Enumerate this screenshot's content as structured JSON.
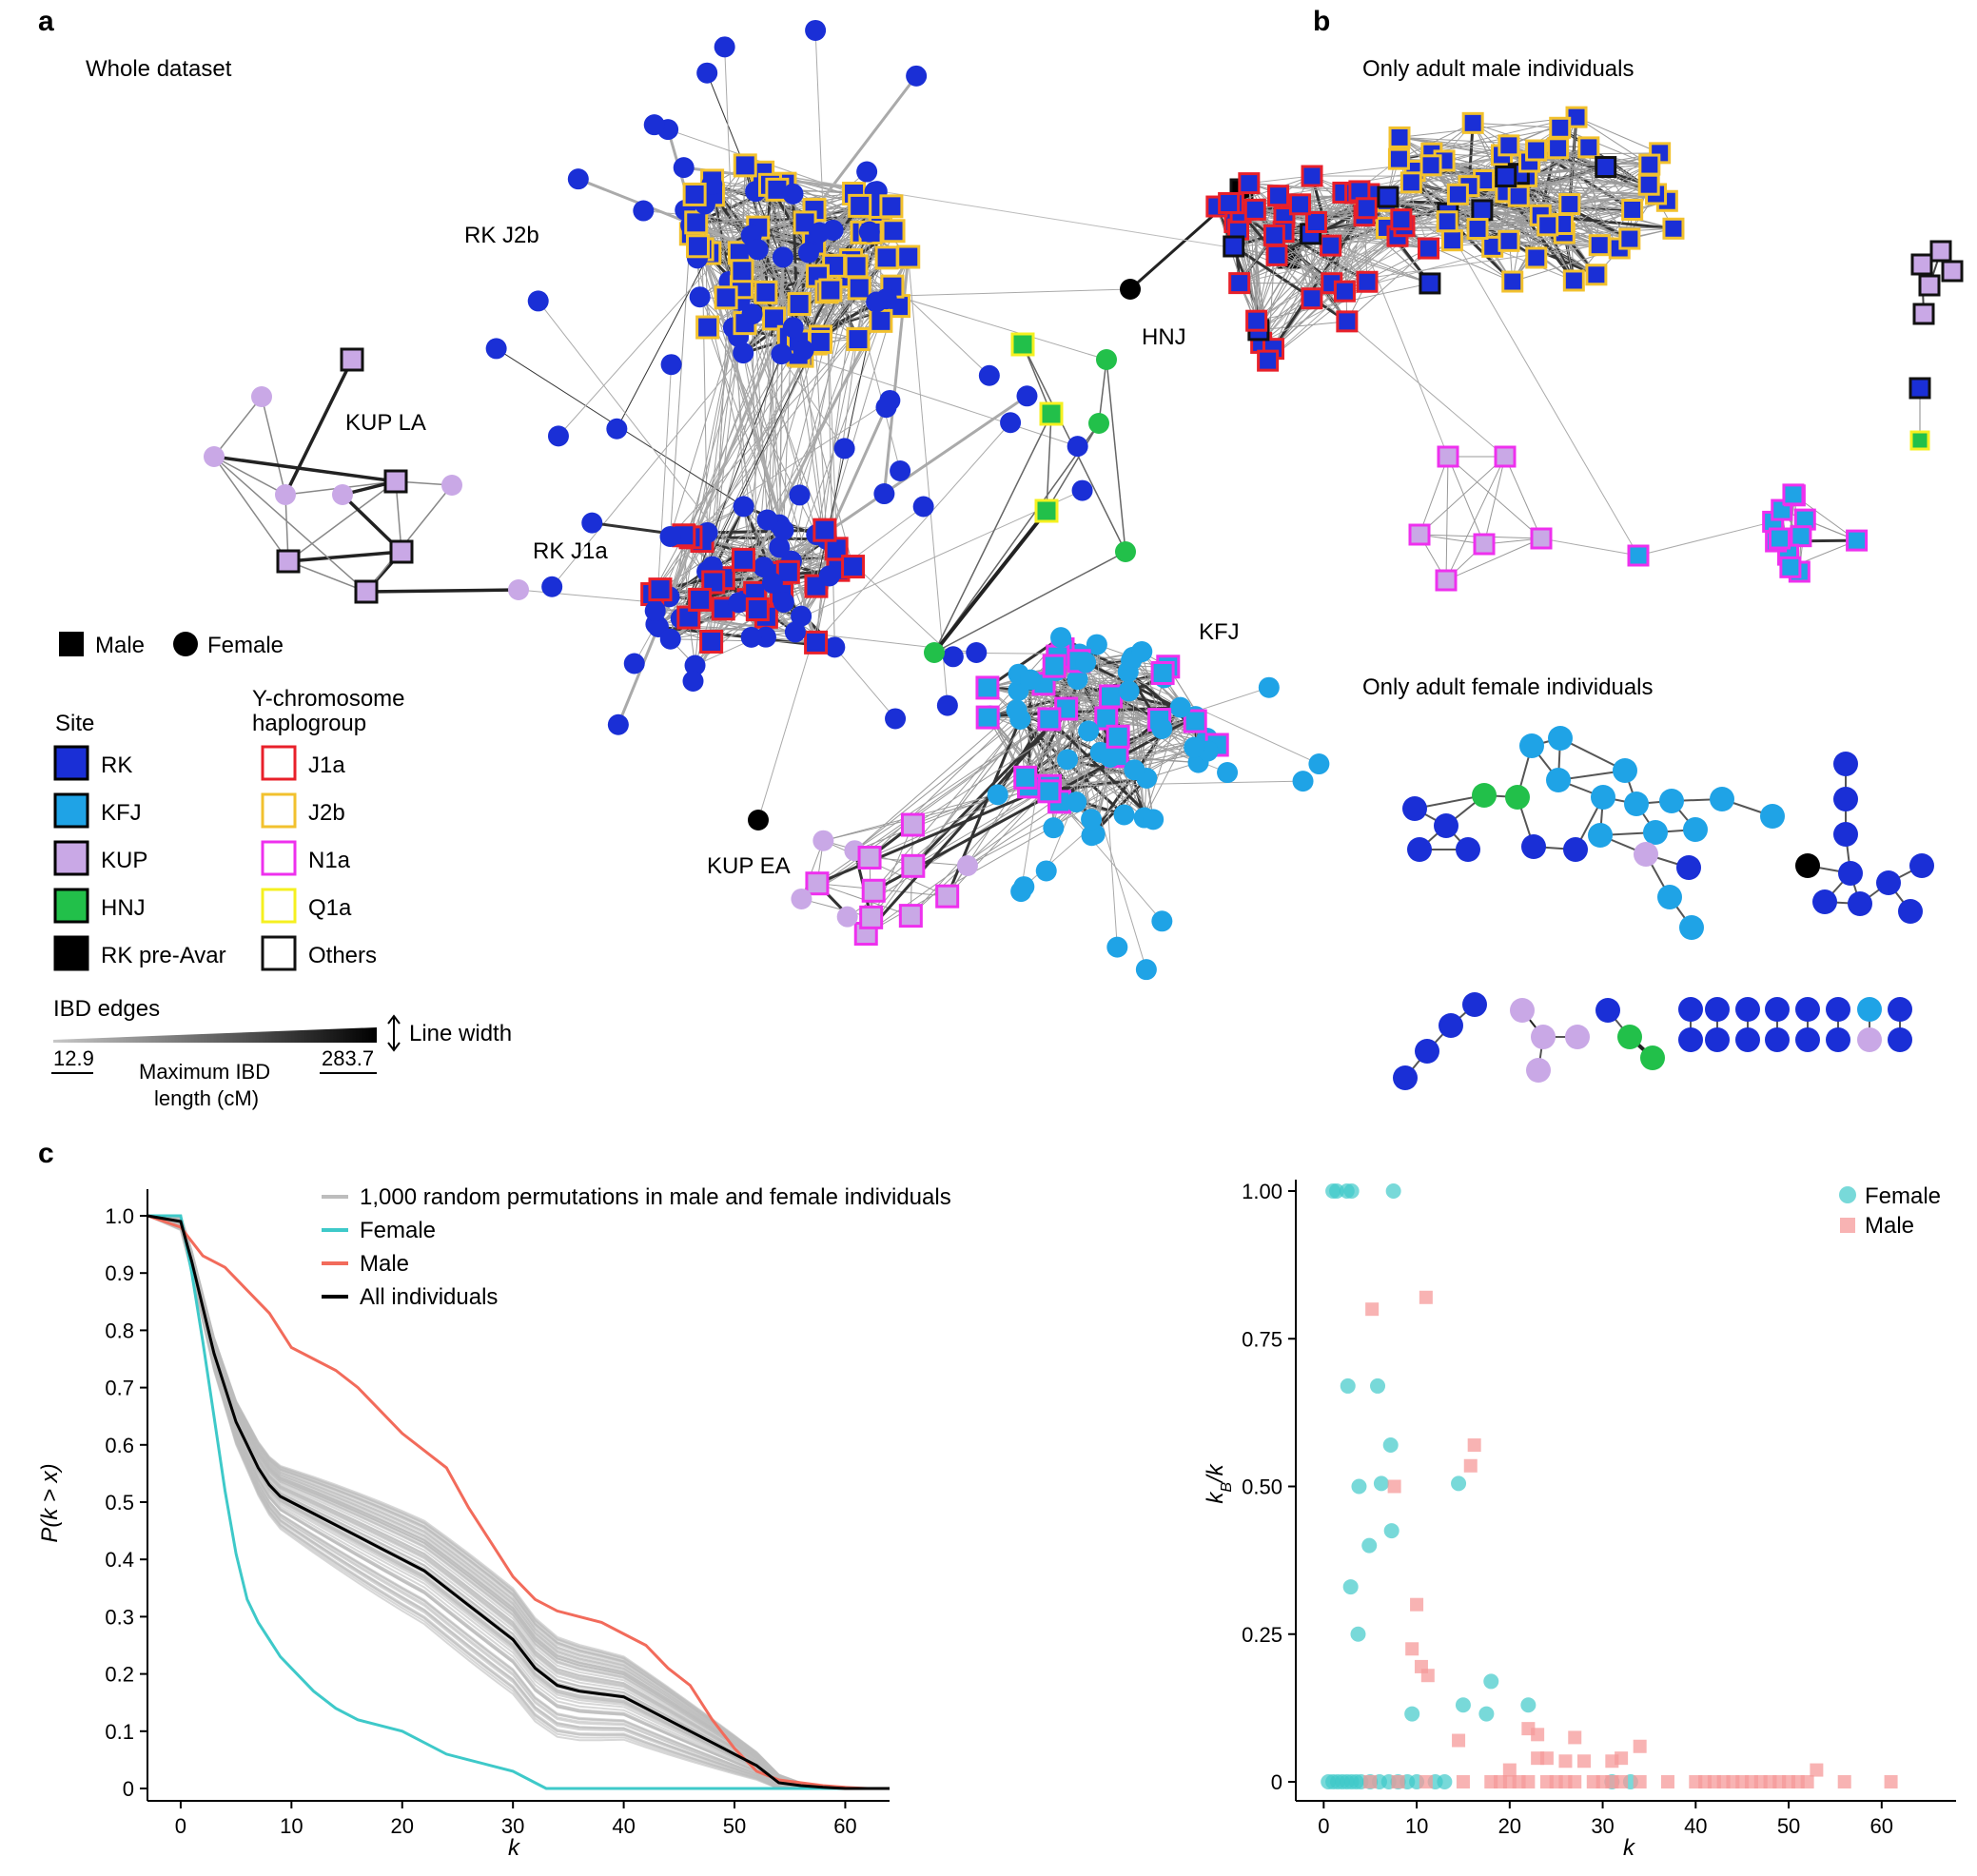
{
  "panels": {
    "a": {
      "letter": "a",
      "title": "Whole dataset",
      "cluster_labels": [
        "RK J2b",
        "KUP LA",
        "RK J1a",
        "HNJ",
        "KFJ",
        "KUP EA"
      ]
    },
    "b": {
      "letter": "b",
      "title_male": "Only adult male individuals",
      "title_female": "Only adult female individuals"
    },
    "c": {
      "letter": "c"
    }
  },
  "legend": {
    "sex": {
      "male": "Male",
      "female": "Female"
    },
    "site_title": "Site",
    "sites": [
      {
        "label": "RK",
        "color": "#1a2fd6"
      },
      {
        "label": "KFJ",
        "color": "#1fa3e6"
      },
      {
        "label": "KUP",
        "color": "#c9a8e6"
      },
      {
        "label": "HNJ",
        "color": "#22c04a"
      },
      {
        "label": "RK pre-Avar",
        "color": "#000000"
      }
    ],
    "hap_title_line1": "Y-chromosome",
    "hap_title_line2": "haplogroup",
    "haplogroups": [
      {
        "label": "J1a",
        "color": "#e8202a"
      },
      {
        "label": "J2b",
        "color": "#f2c12e"
      },
      {
        "label": "N1a",
        "color": "#ee30ee"
      },
      {
        "label": "Q1a",
        "color": "#f5f020"
      },
      {
        "label": "Others",
        "color": "#111111"
      }
    ],
    "ibd_title": "IBD edges",
    "ibd_min": "12.9",
    "ibd_max": "283.7",
    "ibd_axis_line1": "Maximum IBD",
    "ibd_axis_line2": "length (cM)",
    "line_width": "Line width"
  },
  "chart_data": [
    {
      "type": "line",
      "title": "",
      "xlabel": "k",
      "ylabel": "P(k > x)",
      "xlim": [
        -3,
        64
      ],
      "ylim": [
        0,
        1.0
      ],
      "x_ticks": [
        "0",
        "10",
        "20",
        "30",
        "40",
        "50",
        "60"
      ],
      "y_ticks": [
        "0",
        "0.1",
        "0.2",
        "0.3",
        "0.4",
        "0.5",
        "0.6",
        "0.7",
        "0.8",
        "0.9",
        "1.0"
      ],
      "legend": [
        "1,000 random permutations in male and female individuals",
        "Female",
        "Male",
        "All individuals"
      ],
      "series": [
        {
          "name": "Female",
          "color": "#3ec9c9",
          "x": [
            -3,
            0,
            1,
            2,
            3,
            4,
            5,
            6,
            7,
            8,
            9,
            10,
            12,
            14,
            16,
            18,
            20,
            22,
            24,
            26,
            28,
            30,
            32,
            33,
            40,
            50,
            64
          ],
          "y": [
            1.0,
            1.0,
            0.9,
            0.78,
            0.65,
            0.52,
            0.41,
            0.33,
            0.29,
            0.26,
            0.23,
            0.21,
            0.17,
            0.14,
            0.12,
            0.11,
            0.1,
            0.08,
            0.06,
            0.05,
            0.04,
            0.03,
            0.01,
            0.0,
            0.0,
            0.0,
            0.0
          ]
        },
        {
          "name": "Male",
          "color": "#f26b5b",
          "x": [
            -3,
            0,
            2,
            4,
            6,
            8,
            10,
            12,
            14,
            16,
            18,
            20,
            22,
            24,
            26,
            28,
            30,
            32,
            34,
            36,
            38,
            40,
            42,
            44,
            46,
            48,
            50,
            52,
            54,
            56,
            58,
            60,
            62,
            64
          ],
          "y": [
            1.0,
            0.98,
            0.93,
            0.91,
            0.87,
            0.83,
            0.77,
            0.75,
            0.73,
            0.7,
            0.66,
            0.62,
            0.59,
            0.56,
            0.49,
            0.43,
            0.37,
            0.33,
            0.31,
            0.3,
            0.29,
            0.27,
            0.25,
            0.21,
            0.18,
            0.12,
            0.07,
            0.03,
            0.015,
            0.01,
            0.005,
            0.002,
            0.0,
            0.0
          ]
        },
        {
          "name": "All individuals",
          "color": "#000000",
          "x": [
            -3,
            0,
            1,
            2,
            3,
            4,
            5,
            6,
            7,
            8,
            9,
            10,
            12,
            14,
            16,
            18,
            20,
            22,
            24,
            26,
            28,
            30,
            32,
            34,
            36,
            38,
            40,
            42,
            44,
            46,
            48,
            50,
            52,
            54,
            56,
            58,
            60,
            62,
            64
          ],
          "y": [
            1.0,
            0.99,
            0.92,
            0.84,
            0.76,
            0.7,
            0.64,
            0.6,
            0.56,
            0.53,
            0.51,
            0.5,
            0.48,
            0.46,
            0.44,
            0.42,
            0.4,
            0.38,
            0.35,
            0.32,
            0.29,
            0.26,
            0.21,
            0.18,
            0.17,
            0.165,
            0.16,
            0.14,
            0.12,
            0.1,
            0.08,
            0.06,
            0.04,
            0.01,
            0.005,
            0.002,
            0.0,
            0.0,
            0.0
          ]
        }
      ]
    },
    {
      "type": "scatter",
      "title": "",
      "xlabel": "k",
      "ylabel": "kB/k",
      "ylabel_main": "k",
      "ylabel_sub": "B",
      "ylabel_tail": "/k",
      "xlim": [
        -3,
        68
      ],
      "ylim": [
        -0.04,
        1.05
      ],
      "x_ticks": [
        "0",
        "10",
        "20",
        "30",
        "40",
        "50",
        "60"
      ],
      "y_ticks": [
        "0",
        "0.25",
        "0.50",
        "0.75",
        "1.00"
      ],
      "legend": [
        "Female",
        "Male"
      ],
      "series": [
        {
          "name": "Female",
          "color": "#3ec9c9",
          "points": [
            [
              1,
              1.0
            ],
            [
              1.4,
              1.0
            ],
            [
              2.5,
              1.0
            ],
            [
              3,
              1.0
            ],
            [
              7.5,
              1.0
            ],
            [
              2.6,
              0.67
            ],
            [
              5.8,
              0.67
            ],
            [
              7.2,
              0.57
            ],
            [
              3.8,
              0.5
            ],
            [
              6.2,
              0.505
            ],
            [
              14.5,
              0.505
            ],
            [
              4.9,
              0.4
            ],
            [
              7.3,
              0.425
            ],
            [
              2.9,
              0.33
            ],
            [
              3.7,
              0.25
            ],
            [
              18,
              0.17
            ],
            [
              22,
              0.13
            ],
            [
              15,
              0.13
            ],
            [
              17.5,
              0.115
            ],
            [
              9.5,
              0.115
            ],
            [
              0.5,
              0.0
            ],
            [
              1,
              0.0
            ],
            [
              1.5,
              0.0
            ],
            [
              2,
              0.0
            ],
            [
              2.5,
              0.0
            ],
            [
              3,
              0.0
            ],
            [
              3.5,
              0.0
            ],
            [
              4,
              0.0
            ],
            [
              5,
              0.0
            ],
            [
              6,
              0.0
            ],
            [
              7,
              0.0
            ],
            [
              8,
              0.0
            ],
            [
              9,
              0.0
            ],
            [
              10,
              0.0
            ],
            [
              12,
              0.0
            ],
            [
              13,
              0.0
            ],
            [
              31,
              0.0
            ],
            [
              33,
              0.0
            ]
          ]
        },
        {
          "name": "Male",
          "color": "#f59a9a",
          "points": [
            [
              11,
              0.82
            ],
            [
              5.2,
              0.8
            ],
            [
              16.2,
              0.57
            ],
            [
              15.8,
              0.535
            ],
            [
              7.6,
              0.5
            ],
            [
              10,
              0.3
            ],
            [
              9.5,
              0.225
            ],
            [
              10.5,
              0.195
            ],
            [
              11.2,
              0.18
            ],
            [
              14.5,
              0.07
            ],
            [
              22,
              0.09
            ],
            [
              23,
              0.08
            ],
            [
              27,
              0.075
            ],
            [
              34,
              0.06
            ],
            [
              23,
              0.04
            ],
            [
              24,
              0.04
            ],
            [
              26,
              0.035
            ],
            [
              28,
              0.035
            ],
            [
              31,
              0.035
            ],
            [
              32,
              0.04
            ],
            [
              20,
              0.02
            ],
            [
              5,
              0.0
            ],
            [
              8,
              0.0
            ],
            [
              11,
              0.0
            ],
            [
              15,
              0.0
            ],
            [
              18,
              0.0
            ],
            [
              19,
              0.0
            ],
            [
              20,
              0.0
            ],
            [
              21,
              0.0
            ],
            [
              22,
              0.0
            ],
            [
              24,
              0.0
            ],
            [
              25,
              0.0
            ],
            [
              26,
              0.0
            ],
            [
              27,
              0.0
            ],
            [
              29,
              0.0
            ],
            [
              30,
              0.0
            ],
            [
              31,
              0.0
            ],
            [
              32,
              0.0
            ],
            [
              34,
              0.0
            ],
            [
              37,
              0.0
            ],
            [
              40,
              0.0
            ],
            [
              41,
              0.0
            ],
            [
              42,
              0.0
            ],
            [
              43,
              0.0
            ],
            [
              44,
              0.0
            ],
            [
              45,
              0.0
            ],
            [
              46,
              0.0
            ],
            [
              47,
              0.0
            ],
            [
              48,
              0.0
            ],
            [
              49,
              0.0
            ],
            [
              50,
              0.0
            ],
            [
              51,
              0.0
            ],
            [
              52,
              0.0
            ],
            [
              53,
              0.02
            ],
            [
              56,
              0.0
            ],
            [
              61,
              0.0
            ]
          ]
        }
      ]
    }
  ]
}
